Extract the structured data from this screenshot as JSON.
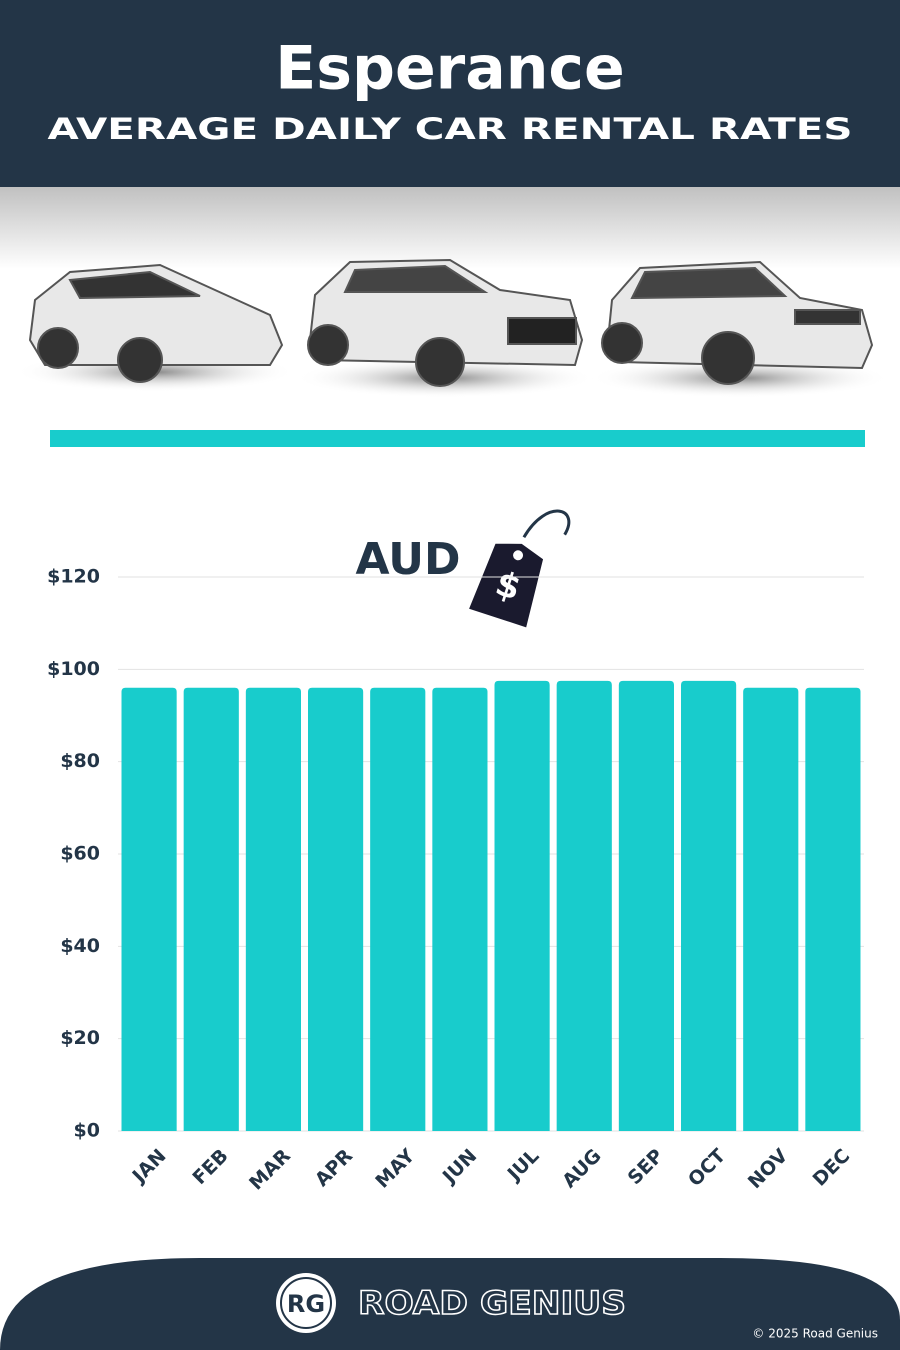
{
  "chart_data": {
    "type": "bar",
    "title": "Esperance",
    "subtitle": "AVERAGE DAILY CAR RENTAL RATES",
    "currency": "AUD",
    "currency_symbol": "$",
    "categories": [
      "JAN",
      "FEB",
      "MAR",
      "APR",
      "MAY",
      "JUN",
      "JUL",
      "AUG",
      "SEP",
      "OCT",
      "NOV",
      "DEC"
    ],
    "values": [
      96,
      96,
      96,
      96,
      96,
      96,
      97.5,
      97.5,
      97.5,
      97.5,
      96,
      96
    ],
    "color": "#18cccc",
    "ylim": [
      0,
      120
    ],
    "yticks": [
      {
        "value": 0,
        "label": "$0"
      },
      {
        "value": 20,
        "label": "$20"
      },
      {
        "value": 40,
        "label": "$40"
      },
      {
        "value": 60,
        "label": "$60"
      },
      {
        "value": 80,
        "label": "$80"
      },
      {
        "value": 100,
        "label": "$100"
      },
      {
        "value": 120,
        "label": "$120"
      }
    ],
    "grid": true
  },
  "footer": {
    "logo": "RG",
    "brand": "ROAD GENIUS",
    "copyright": "© 2025 Road Genius"
  }
}
